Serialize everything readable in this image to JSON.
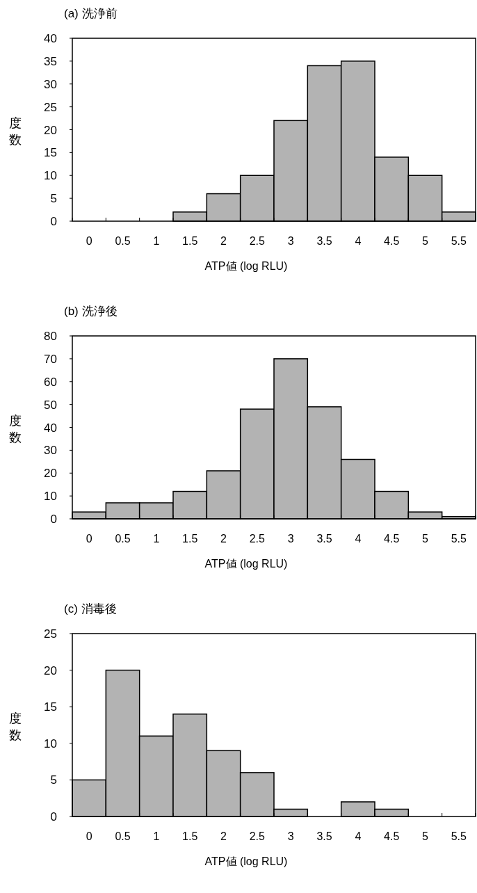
{
  "chart_data": [
    {
      "type": "bar",
      "title": "(a) 洗浄前",
      "xlabel": "ATP値 (log RLU)",
      "ylabel": "度数",
      "categories": [
        "0",
        "0.5",
        "1",
        "1.5",
        "2",
        "2.5",
        "3",
        "3.5",
        "4",
        "4.5",
        "5",
        "5.5"
      ],
      "values": [
        0,
        0,
        0,
        2,
        6,
        10,
        22,
        34,
        35,
        14,
        10,
        2
      ],
      "color": "#b3b3b3",
      "ylim": [
        0,
        40
      ],
      "yticks": [
        0,
        5,
        10,
        15,
        20,
        25,
        30,
        35,
        40
      ],
      "grid": false
    },
    {
      "type": "bar",
      "title": "(b) 洗浄後",
      "xlabel": "ATP値 (log RLU)",
      "ylabel": "度数",
      "categories": [
        "0",
        "0.5",
        "1",
        "1.5",
        "2",
        "2.5",
        "3",
        "3.5",
        "4",
        "4.5",
        "5",
        "5.5"
      ],
      "values": [
        3,
        7,
        7,
        12,
        21,
        48,
        70,
        49,
        26,
        12,
        3,
        1
      ],
      "color": "#b3b3b3",
      "ylim": [
        0,
        80
      ],
      "yticks": [
        0,
        10,
        20,
        30,
        40,
        50,
        60,
        70,
        80
      ],
      "grid": false
    },
    {
      "type": "bar",
      "title": "(c) 消毒後",
      "xlabel": "ATP値 (log RLU)",
      "ylabel": "度数",
      "categories": [
        "0",
        "0.5",
        "1",
        "1.5",
        "2",
        "2.5",
        "3",
        "3.5",
        "4",
        "4.5",
        "5",
        "5.5"
      ],
      "values": [
        5,
        20,
        11,
        14,
        9,
        6,
        1,
        0,
        2,
        1,
        0,
        0
      ],
      "color": "#b3b3b3",
      "ylim": [
        0,
        25
      ],
      "yticks": [
        0,
        5,
        10,
        15,
        20,
        25
      ],
      "grid": false
    }
  ]
}
